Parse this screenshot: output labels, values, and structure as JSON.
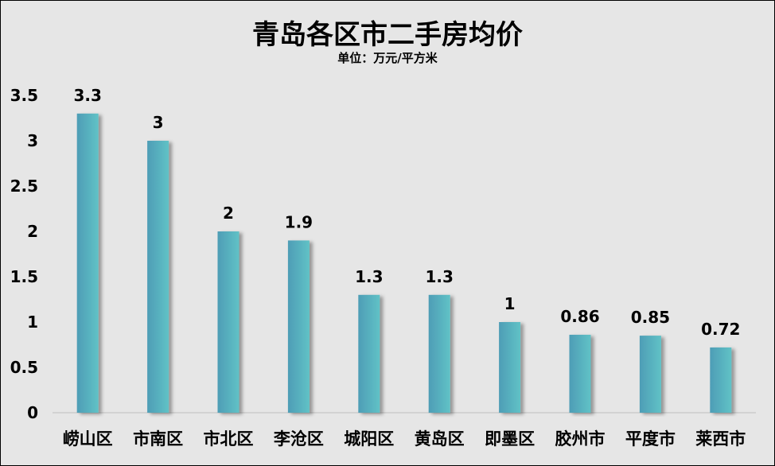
{
  "chart_data": {
    "type": "bar",
    "title": "青岛各区市二手房均价",
    "subtitle": "单位：万元/平方米",
    "categories": [
      "崂山区",
      "市南区",
      "市北区",
      "李沧区",
      "城阳区",
      "黄岛区",
      "即墨区",
      "胶州市",
      "平度市",
      "莱西市"
    ],
    "values": [
      3.3,
      3,
      2,
      1.9,
      1.3,
      1.3,
      1,
      0.86,
      0.85,
      0.72
    ],
    "data_labels": [
      "3.3",
      "3",
      "2",
      "1.9",
      "1.3",
      "1.3",
      "1",
      "0.86",
      "0.85",
      "0.72"
    ],
    "yticks": [
      "0",
      "0.5",
      "1",
      "1.5",
      "2",
      "2.5",
      "3",
      "3.5"
    ],
    "ylim": [
      0,
      3.5
    ],
    "grid": false,
    "legend": "none",
    "colors": {
      "bar_start": "#4e9db6",
      "bar_end": "#60c2c6",
      "background": "#e6e6e6"
    }
  }
}
